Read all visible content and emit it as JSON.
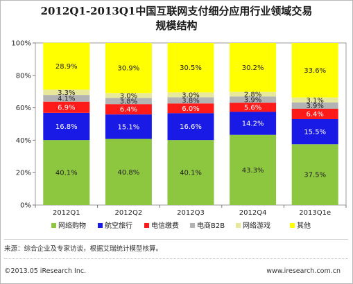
{
  "title_line1": "2012Q1-2013Q1中国互联网支付细分应用行业领域交易",
  "title_line2": "规模结构",
  "source": "来源：综合企业及专家访谈，根据艾瑞统计模型核算。",
  "copyright": "©2013.05 iResearch Inc.",
  "website": "www.iresearch.com.cn",
  "chart_data": {
    "type": "bar",
    "stacked": true,
    "categories": [
      "2012Q1",
      "2012Q2",
      "2012Q3",
      "2012Q4",
      "2013Q1e"
    ],
    "yticks": [
      "0%",
      "20%",
      "40%",
      "60%",
      "80%",
      "100%"
    ],
    "ylim": [
      0,
      100
    ],
    "legend_position": "bottom",
    "series": [
      {
        "name": "网络购物",
        "color": "#8dc63f",
        "values": [
          40.1,
          40.8,
          40.1,
          43.3,
          37.5
        ],
        "labels": [
          "40.1%",
          "40.8%",
          "40.1%",
          "43.3%",
          "37.5%"
        ]
      },
      {
        "name": "航空旅行",
        "color": "#1a1ae6",
        "values": [
          16.8,
          15.1,
          16.6,
          14.2,
          15.5
        ],
        "labels": [
          "16.8%",
          "15.1%",
          "16.6%",
          "14.2%",
          "15.5%"
        ]
      },
      {
        "name": "电信缴费",
        "color": "#ff1a1a",
        "values": [
          6.9,
          6.4,
          6.0,
          5.6,
          6.4
        ],
        "labels": [
          "6.9%",
          "6.4%",
          "6.0%",
          "5.6%",
          "6.4%"
        ]
      },
      {
        "name": "电商B2B",
        "color": "#b3b3b3",
        "values": [
          4.1,
          3.8,
          3.8,
          3.9,
          3.9
        ],
        "labels": [
          "4.1%",
          "3.8%",
          "3.8%",
          "3.9%",
          "3.9%"
        ]
      },
      {
        "name": "网络游戏",
        "color": "#e8e89a",
        "values": [
          3.3,
          3.0,
          3.0,
          2.8,
          3.1
        ],
        "labels": [
          "3.3%",
          "3.0%",
          "3.0%",
          "2.8%",
          "3.1%"
        ]
      },
      {
        "name": "其他",
        "color": "#ffff00",
        "values": [
          28.9,
          30.9,
          30.5,
          30.2,
          33.6
        ],
        "labels": [
          "28.9%",
          "30.9%",
          "30.5%",
          "30.2%",
          "33.6%"
        ]
      }
    ]
  }
}
